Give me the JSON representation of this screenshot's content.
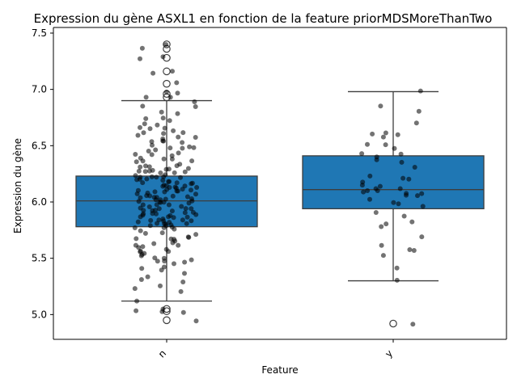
{
  "chart_data": {
    "type": "box",
    "title": "Expression du gène ASXL1 en fonction de la feature priorMDSMoreThanTwo",
    "xlabel": "Feature",
    "ylabel": "Expression du gène",
    "ylim": [
      4.78,
      7.55
    ],
    "yticks": [
      5.0,
      5.5,
      6.0,
      6.5,
      7.0,
      7.5
    ],
    "ytick_labels": [
      "5.0",
      "5.5",
      "6.0",
      "6.5",
      "7.0",
      "7.5"
    ],
    "categories": [
      "n",
      "y"
    ],
    "box_color": "#1f77b4",
    "boxes": [
      {
        "category": "n",
        "q1": 5.78,
        "median": 6.01,
        "q3": 6.23,
        "whisker_low": 5.12,
        "whisker_high": 6.9,
        "outliers": [
          7.4,
          7.36,
          7.28,
          7.16,
          7.05,
          6.96,
          6.93,
          5.05,
          5.03,
          4.95
        ]
      },
      {
        "category": "y",
        "q1": 5.94,
        "median": 6.11,
        "q3": 6.41,
        "whisker_low": 5.3,
        "whisker_high": 6.98,
        "outliers": [
          4.92
        ]
      }
    ],
    "points": {
      "n": [
        7.4,
        7.36,
        7.29,
        7.28,
        7.16,
        7.15,
        7.05,
        6.97,
        6.96,
        6.93,
        6.92,
        6.9,
        6.85,
        6.84,
        6.8,
        6.78,
        6.75,
        6.74,
        6.72,
        6.7,
        6.68,
        6.67,
        6.66,
        6.65,
        6.63,
        6.62,
        6.61,
        6.6,
        6.59,
        6.58,
        6.57,
        6.56,
        6.55,
        6.54,
        6.53,
        6.52,
        6.51,
        6.5,
        6.49,
        6.48,
        6.47,
        6.46,
        6.45,
        6.44,
        6.43,
        6.42,
        6.41,
        6.4,
        6.39,
        6.38,
        6.37,
        6.36,
        6.35,
        6.34,
        6.33,
        6.32,
        6.31,
        6.3,
        6.3,
        6.29,
        6.28,
        6.28,
        6.27,
        6.27,
        6.26,
        6.26,
        6.25,
        6.25,
        6.24,
        6.24,
        6.23,
        6.23,
        6.22,
        6.22,
        6.21,
        6.21,
        6.2,
        6.2,
        6.19,
        6.19,
        6.18,
        6.18,
        6.17,
        6.17,
        6.16,
        6.16,
        6.15,
        6.15,
        6.14,
        6.14,
        6.13,
        6.13,
        6.12,
        6.12,
        6.11,
        6.11,
        6.1,
        6.1,
        6.09,
        6.09,
        6.08,
        6.08,
        6.07,
        6.07,
        6.06,
        6.06,
        6.05,
        6.05,
        6.04,
        6.04,
        6.03,
        6.03,
        6.02,
        6.02,
        6.01,
        6.01,
        6.0,
        6.0,
        5.99,
        5.99,
        5.98,
        5.98,
        5.97,
        5.97,
        5.96,
        5.96,
        5.95,
        5.95,
        5.94,
        5.94,
        5.93,
        5.93,
        5.92,
        5.92,
        5.91,
        5.91,
        5.9,
        5.9,
        5.89,
        5.89,
        5.88,
        5.88,
        5.87,
        5.87,
        5.86,
        5.86,
        5.85,
        5.85,
        5.84,
        5.84,
        5.83,
        5.83,
        5.82,
        5.82,
        5.81,
        5.81,
        5.8,
        5.8,
        5.79,
        5.79,
        5.78,
        5.78,
        5.77,
        5.76,
        5.75,
        5.74,
        5.73,
        5.72,
        5.71,
        5.7,
        5.69,
        5.68,
        5.67,
        5.66,
        5.65,
        5.64,
        5.63,
        5.62,
        5.61,
        5.6,
        5.59,
        5.58,
        5.57,
        5.56,
        5.55,
        5.54,
        5.53,
        5.52,
        5.51,
        5.5,
        5.49,
        5.48,
        5.47,
        5.46,
        5.45,
        5.43,
        5.41,
        5.39,
        5.37,
        5.34,
        5.31,
        5.28,
        5.25,
        5.23,
        5.2,
        5.12,
        5.05,
        5.04,
        5.03,
        5.01,
        4.95
      ],
      "y": [
        6.98,
        6.85,
        6.81,
        6.7,
        6.62,
        6.61,
        6.6,
        6.58,
        6.51,
        6.5,
        6.47,
        6.44,
        6.42,
        6.41,
        6.38,
        6.35,
        6.3,
        6.22,
        6.21,
        6.2,
        6.17,
        6.15,
        6.14,
        6.12,
        6.11,
        6.1,
        6.1,
        6.09,
        6.08,
        6.07,
        6.06,
        6.05,
        6.02,
        6.0,
        5.99,
        5.97,
        5.9,
        5.87,
        5.82,
        5.8,
        5.79,
        5.68,
        5.61,
        5.58,
        5.57,
        5.53,
        5.42,
        5.3,
        4.92
      ]
    }
  }
}
